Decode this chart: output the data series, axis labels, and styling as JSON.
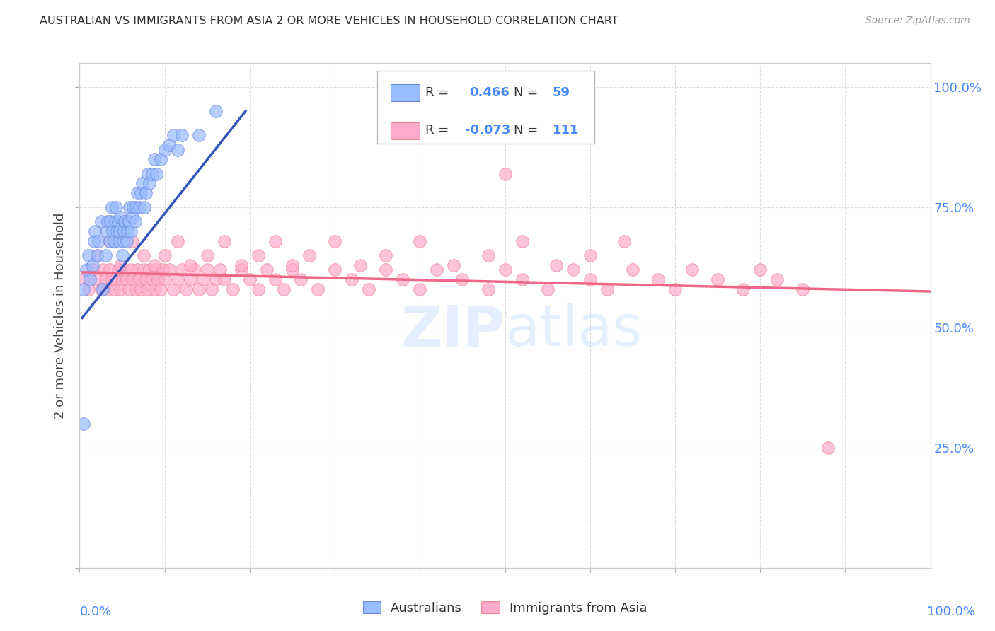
{
  "title": "AUSTRALIAN VS IMMIGRANTS FROM ASIA 2 OR MORE VEHICLES IN HOUSEHOLD CORRELATION CHART",
  "source": "Source: ZipAtlas.com",
  "ylabel": "2 or more Vehicles in Household",
  "watermark_line1": "ZIP",
  "watermark_line2": "atlas",
  "legend_blue_r": "0.466",
  "legend_blue_n": "59",
  "legend_pink_r": "-0.073",
  "legend_pink_n": "111",
  "blue_color": "#99BBFF",
  "blue_edge_color": "#6688DD",
  "pink_color": "#FFAACC",
  "pink_edge_color": "#EE8899",
  "blue_line_color": "#3355BB",
  "pink_line_color": "#EE6688",
  "axis_label_color": "#4488FF",
  "title_color": "#333333",
  "source_color": "#999999",
  "background_color": "#FFFFFF",
  "grid_color": "#DDDDDD",
  "blue_scatter_x": [
    0.005,
    0.008,
    0.01,
    0.012,
    0.015,
    0.017,
    0.018,
    0.02,
    0.022,
    0.025,
    0.027,
    0.03,
    0.032,
    0.033,
    0.035,
    0.036,
    0.038,
    0.039,
    0.04,
    0.042,
    0.043,
    0.044,
    0.045,
    0.046,
    0.047,
    0.048,
    0.05,
    0.051,
    0.052,
    0.053,
    0.055,
    0.056,
    0.058,
    0.059,
    0.06,
    0.062,
    0.063,
    0.065,
    0.066,
    0.068,
    0.07,
    0.072,
    0.074,
    0.076,
    0.078,
    0.08,
    0.082,
    0.085,
    0.088,
    0.09,
    0.095,
    0.1,
    0.105,
    0.11,
    0.115,
    0.12,
    0.14,
    0.16,
    0.005
  ],
  "blue_scatter_y": [
    0.58,
    0.62,
    0.65,
    0.6,
    0.63,
    0.68,
    0.7,
    0.65,
    0.68,
    0.72,
    0.58,
    0.65,
    0.7,
    0.72,
    0.68,
    0.72,
    0.75,
    0.7,
    0.68,
    0.72,
    0.75,
    0.7,
    0.72,
    0.68,
    0.7,
    0.73,
    0.65,
    0.68,
    0.7,
    0.72,
    0.68,
    0.7,
    0.72,
    0.75,
    0.7,
    0.73,
    0.75,
    0.72,
    0.75,
    0.78,
    0.75,
    0.78,
    0.8,
    0.75,
    0.78,
    0.82,
    0.8,
    0.82,
    0.85,
    0.82,
    0.85,
    0.87,
    0.88,
    0.9,
    0.87,
    0.9,
    0.9,
    0.95,
    0.3
  ],
  "pink_scatter_x": [
    0.005,
    0.01,
    0.015,
    0.02,
    0.025,
    0.028,
    0.03,
    0.032,
    0.035,
    0.038,
    0.04,
    0.042,
    0.045,
    0.048,
    0.05,
    0.052,
    0.055,
    0.058,
    0.06,
    0.062,
    0.065,
    0.068,
    0.07,
    0.072,
    0.075,
    0.078,
    0.08,
    0.082,
    0.085,
    0.088,
    0.09,
    0.092,
    0.095,
    0.098,
    0.1,
    0.105,
    0.11,
    0.115,
    0.12,
    0.125,
    0.13,
    0.135,
    0.14,
    0.145,
    0.15,
    0.155,
    0.16,
    0.165,
    0.17,
    0.18,
    0.19,
    0.2,
    0.21,
    0.22,
    0.23,
    0.24,
    0.25,
    0.26,
    0.28,
    0.3,
    0.32,
    0.34,
    0.36,
    0.38,
    0.4,
    0.42,
    0.45,
    0.48,
    0.5,
    0.52,
    0.55,
    0.58,
    0.6,
    0.62,
    0.65,
    0.68,
    0.7,
    0.72,
    0.75,
    0.78,
    0.8,
    0.82,
    0.85,
    0.88,
    0.02,
    0.035,
    0.048,
    0.062,
    0.075,
    0.088,
    0.1,
    0.115,
    0.13,
    0.15,
    0.17,
    0.19,
    0.21,
    0.23,
    0.25,
    0.27,
    0.3,
    0.33,
    0.36,
    0.4,
    0.44,
    0.48,
    0.52,
    0.56,
    0.6,
    0.64,
    0.5
  ],
  "pink_scatter_y": [
    0.6,
    0.58,
    0.62,
    0.6,
    0.58,
    0.62,
    0.6,
    0.58,
    0.62,
    0.6,
    0.58,
    0.6,
    0.62,
    0.58,
    0.6,
    0.62,
    0.6,
    0.58,
    0.62,
    0.6,
    0.58,
    0.62,
    0.6,
    0.58,
    0.62,
    0.6,
    0.58,
    0.62,
    0.6,
    0.58,
    0.62,
    0.6,
    0.58,
    0.62,
    0.6,
    0.62,
    0.58,
    0.6,
    0.62,
    0.58,
    0.6,
    0.62,
    0.58,
    0.6,
    0.62,
    0.58,
    0.6,
    0.62,
    0.6,
    0.58,
    0.62,
    0.6,
    0.58,
    0.62,
    0.6,
    0.58,
    0.62,
    0.6,
    0.58,
    0.62,
    0.6,
    0.58,
    0.62,
    0.6,
    0.58,
    0.62,
    0.6,
    0.58,
    0.62,
    0.6,
    0.58,
    0.62,
    0.6,
    0.58,
    0.62,
    0.6,
    0.58,
    0.62,
    0.6,
    0.58,
    0.62,
    0.6,
    0.58,
    0.25,
    0.65,
    0.68,
    0.63,
    0.68,
    0.65,
    0.63,
    0.65,
    0.68,
    0.63,
    0.65,
    0.68,
    0.63,
    0.65,
    0.68,
    0.63,
    0.65,
    0.68,
    0.63,
    0.65,
    0.68,
    0.63,
    0.65,
    0.68,
    0.63,
    0.65,
    0.68,
    0.82
  ],
  "blue_line_x": [
    0.003,
    0.195
  ],
  "blue_line_y": [
    0.52,
    0.95
  ],
  "pink_line_x": [
    0.003,
    1.0
  ],
  "pink_line_y": [
    0.615,
    0.575
  ],
  "figsize": [
    14.06,
    8.92
  ],
  "dpi": 100,
  "xlim": [
    0.0,
    1.0
  ],
  "ylim": [
    0.0,
    1.05
  ]
}
